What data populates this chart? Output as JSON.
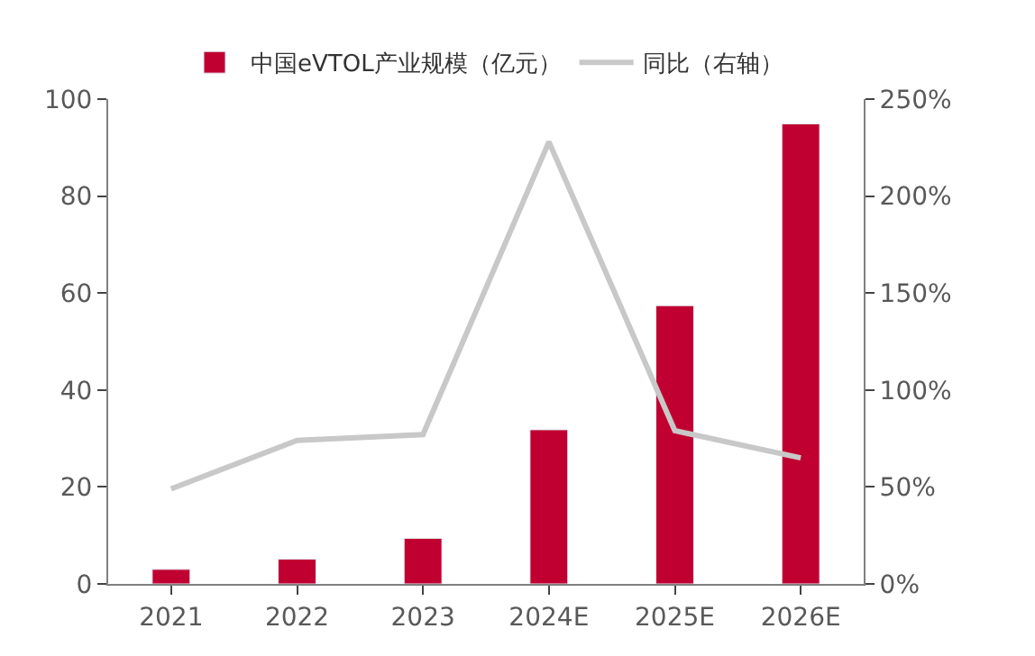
{
  "chart_data": {
    "type": "bar",
    "categories": [
      "2021",
      "2022",
      "2023",
      "2024E",
      "2025E",
      "2026E"
    ],
    "series": [
      {
        "name": "中国eVTOL产业规模（亿元）",
        "color": "#c00030",
        "values": [
          3.0,
          5.1,
          9.4,
          31.8,
          57.4,
          94.9
        ]
      },
      {
        "name": "同比（右轴）",
        "type": "line",
        "axis": "y2",
        "color": "#c8c8c8",
        "values": [
          49,
          74,
          77,
          228,
          79,
          65
        ]
      }
    ],
    "ylim": [
      0,
      100
    ],
    "yticks": [
      0,
      20,
      40,
      60,
      80,
      100
    ],
    "y2lim": [
      0,
      250
    ],
    "y2ticks": [
      {
        "value": 0,
        "label": "0%"
      },
      {
        "value": 50,
        "label": "50%"
      },
      {
        "value": 100,
        "label": "100%"
      },
      {
        "value": 150,
        "label": "150%"
      },
      {
        "value": 200,
        "label": "200%"
      },
      {
        "value": 250,
        "label": "250%"
      }
    ],
    "legend": "top",
    "marker": "none",
    "line_style": "solid"
  }
}
